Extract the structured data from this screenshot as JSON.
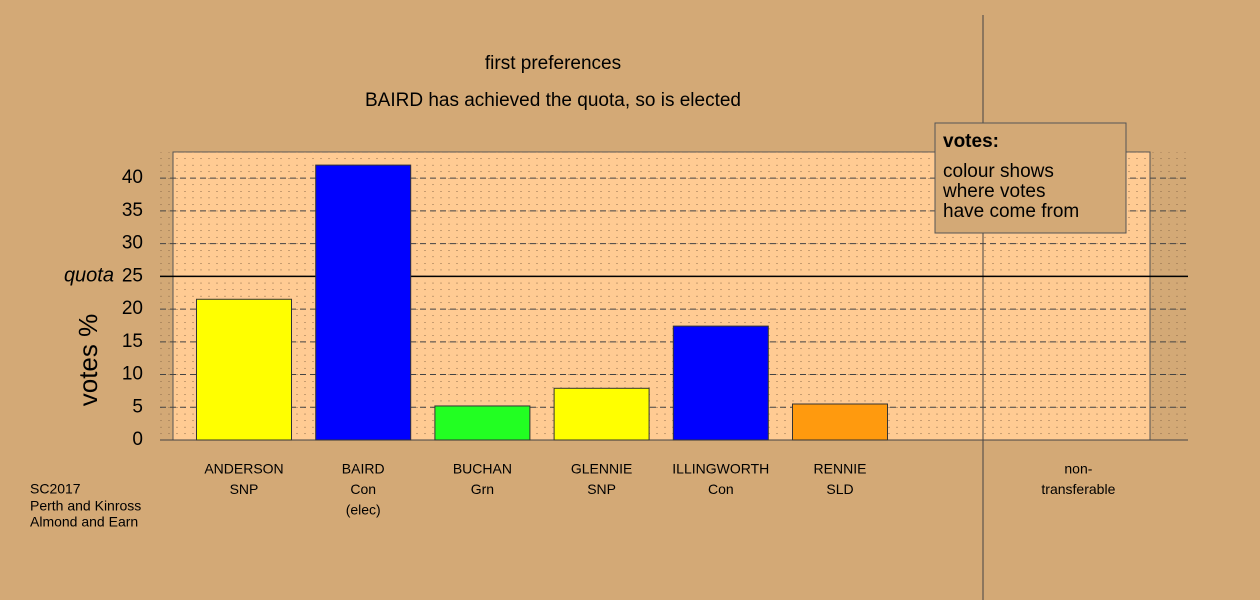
{
  "chart_data": {
    "type": "bar",
    "title": "first preferences",
    "subtitle": "BAIRD has achieved the quota, so is elected",
    "y_label": "votes %",
    "categories": [
      [
        "ANDERSON",
        "SNP"
      ],
      [
        "BAIRD",
        "Con",
        "(elec)"
      ],
      [
        "BUCHAN",
        "Grn"
      ],
      [
        "GLENNIE",
        "SNP"
      ],
      [
        "ILLINGWORTH",
        "Con"
      ],
      [
        "RENNIE",
        "SLD"
      ],
      [
        "non-",
        "transferable"
      ]
    ],
    "values": [
      21.5,
      42,
      5.2,
      7.9,
      17.4,
      5.5,
      0
    ],
    "colors": [
      "#ffff00",
      "#0000ff",
      "#22ff22",
      "#ffff00",
      "#0000ff",
      "#ff9a0e",
      "#ffffff"
    ],
    "ylim": [
      0,
      44
    ],
    "yticks": [
      0,
      5,
      10,
      15,
      20,
      25,
      30,
      35,
      40
    ],
    "grid": true,
    "quota": 25,
    "quota_label": "quota",
    "legend": {
      "title": "votes:",
      "lines": [
        "colour shows",
        "where votes",
        "have come from"
      ]
    },
    "source": [
      "SC2017",
      "Perth and Kinross",
      "Almond and Earn"
    ]
  }
}
